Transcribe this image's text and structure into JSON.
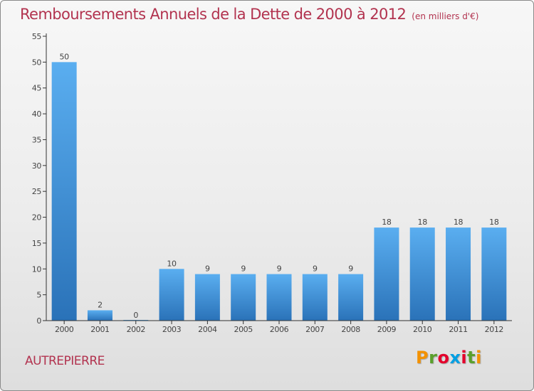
{
  "chart_data": {
    "type": "bar",
    "title": "Remboursements Annuels de la Dette de 2000 à 2012",
    "unit_note": "(en milliers d'€)",
    "categories": [
      "2000",
      "2001",
      "2002",
      "2003",
      "2004",
      "2005",
      "2006",
      "2007",
      "2008",
      "2009",
      "2010",
      "2011",
      "2012"
    ],
    "values": [
      50,
      2,
      0,
      10,
      9,
      9,
      9,
      9,
      9,
      18,
      18,
      18,
      18
    ],
    "value_labels": [
      "50",
      "2",
      "0",
      "10",
      "9",
      "9",
      "9",
      "9",
      "9",
      "18",
      "18",
      "18",
      "18"
    ],
    "yticks": [
      "0",
      "5",
      "10",
      "15",
      "20",
      "25",
      "30",
      "35",
      "40",
      "45",
      "50",
      "55"
    ],
    "ylim": [
      0,
      55
    ],
    "grid": false,
    "legend": "none",
    "bar_color": "#3d8fd6"
  },
  "footer": {
    "commune": "AUTREPIERRE",
    "logo_text": "Proxiti",
    "logo_letter_colors": [
      "#f39200",
      "#5aa02c",
      "#e4002b",
      "#009fe3",
      "#e4002b",
      "#5aa02c",
      "#f39200"
    ]
  },
  "colors": {
    "title": "#b2334f",
    "axis": "#333333"
  }
}
